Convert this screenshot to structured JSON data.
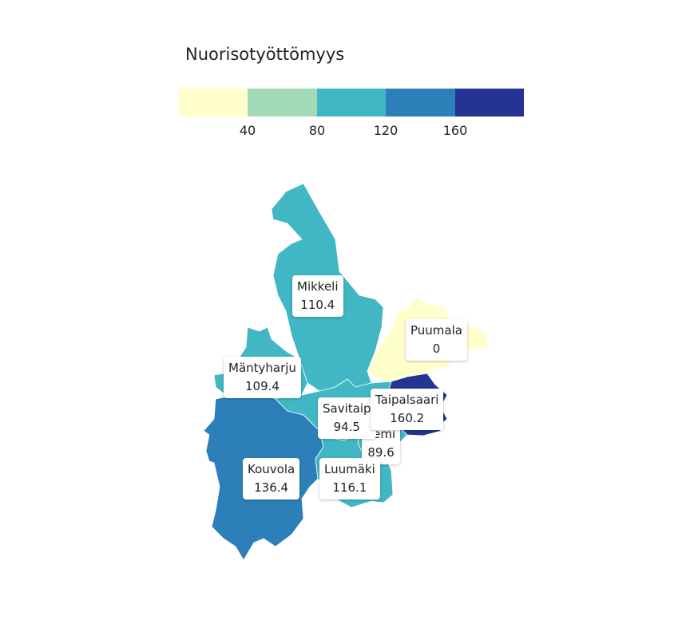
{
  "legend": {
    "title": "Nuorisotyöttömyys",
    "colors": [
      "#ffffcc",
      "#a1dab4",
      "#41b6c4",
      "#2c7fb8",
      "#253494"
    ],
    "ticks": [
      "40",
      "80",
      "120",
      "160"
    ]
  },
  "map_data": {
    "regions": [
      {
        "id": "mikkeli",
        "name": "Mikkeli",
        "value": "110.4",
        "color": "#41b6c4"
      },
      {
        "id": "puumala",
        "name": "Puumala",
        "value": "0",
        "color": "#ffffcc"
      },
      {
        "id": "mantyharju",
        "name": "Mäntyharju",
        "value": "109.4",
        "color": "#41b6c4"
      },
      {
        "id": "taipalsaari",
        "name": "Taipalsaari",
        "value": "160.2",
        "color": "#253494"
      },
      {
        "id": "savitaipale",
        "name": "Savitaip",
        "value": "94.5",
        "color": "#41b6c4"
      },
      {
        "id": "lemi",
        "name": "Lemi",
        "value": "89.6",
        "color": "#41b6c4"
      },
      {
        "id": "kouvola",
        "name": "Kouvola",
        "value": "136.4",
        "color": "#2c7fb8"
      },
      {
        "id": "luumaki",
        "name": "Luumäki",
        "value": "116.1",
        "color": "#41b6c4"
      }
    ]
  }
}
